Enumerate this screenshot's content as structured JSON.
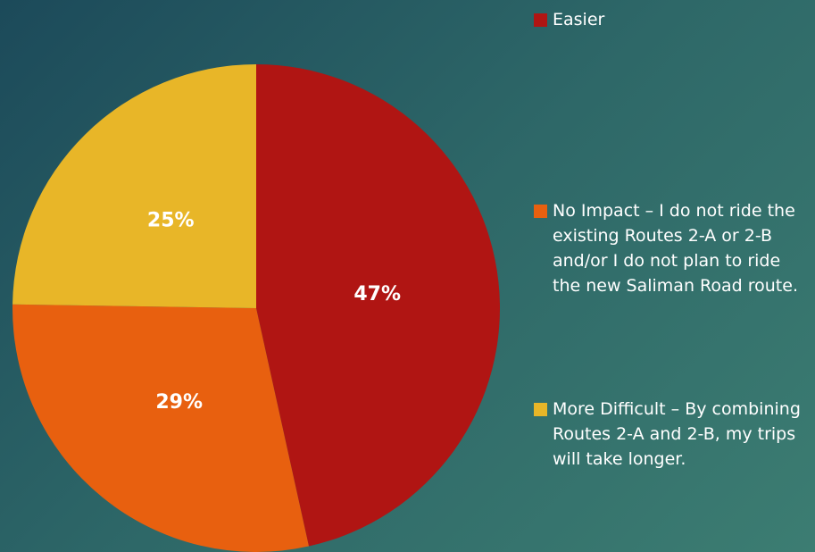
{
  "chart_data": {
    "type": "pie",
    "categories": [
      "Easier",
      "No Impact – I do not ride the existing Routes 2-A or 2-B and/or I do not plan to ride the new Saliman Road route.",
      "More Difficult – By combining Routes 2-A and 2-B, my trips will take longer."
    ],
    "values": [
      47,
      29,
      25
    ],
    "value_labels": [
      "47%",
      "29%",
      "25%"
    ],
    "colors": [
      "#b01513",
      "#e8600f",
      "#e8b628"
    ],
    "legend": "right"
  }
}
